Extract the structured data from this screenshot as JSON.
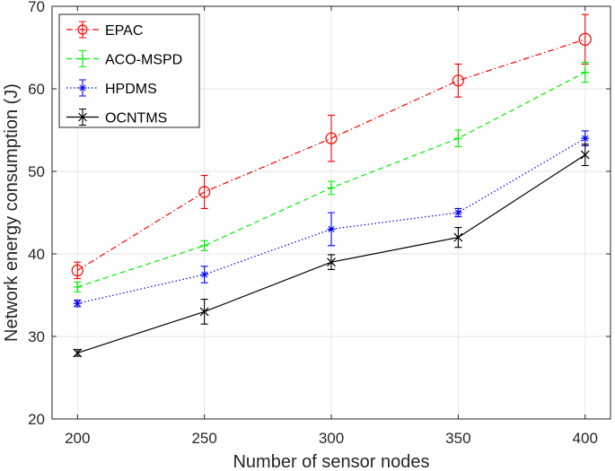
{
  "chart_data": {
    "type": "line",
    "title": "",
    "xlabel": "Number of sensor nodes",
    "ylabel": "Network energy consumption (J)",
    "x": [
      200,
      250,
      300,
      350,
      400
    ],
    "xlim": [
      190,
      410
    ],
    "ylim": [
      20,
      70
    ],
    "xticks": [
      "200",
      "250",
      "300",
      "350",
      "400"
    ],
    "yticks": [
      "20",
      "30",
      "40",
      "50",
      "60",
      "70"
    ],
    "grid": true,
    "legend_position": "top-left",
    "series": [
      {
        "name": "EPAC",
        "color": "#ff0000",
        "dash": "dashdot",
        "marker": "circle",
        "values": [
          38,
          47.5,
          54,
          61,
          66
        ],
        "errors": [
          1.0,
          2.0,
          2.8,
          2.0,
          3.0
        ]
      },
      {
        "name": "ACO-MSPD",
        "color": "#00ee00",
        "dash": "dashed",
        "marker": "plus",
        "values": [
          36,
          41,
          48,
          54,
          62
        ],
        "errors": [
          0.6,
          0.6,
          0.8,
          1.0,
          1.2
        ]
      },
      {
        "name": "HPDMS",
        "color": "#0000ff",
        "dash": "dotted",
        "marker": "star",
        "values": [
          34,
          37.5,
          43,
          45,
          54
        ],
        "errors": [
          0.4,
          1.0,
          2.0,
          0.5,
          0.9
        ]
      },
      {
        "name": "OCNTMS",
        "color": "#000000",
        "dash": "solid",
        "marker": "x",
        "values": [
          28,
          33,
          39,
          42,
          52
        ],
        "errors": [
          0.4,
          1.5,
          0.9,
          1.2,
          1.3
        ]
      }
    ]
  }
}
